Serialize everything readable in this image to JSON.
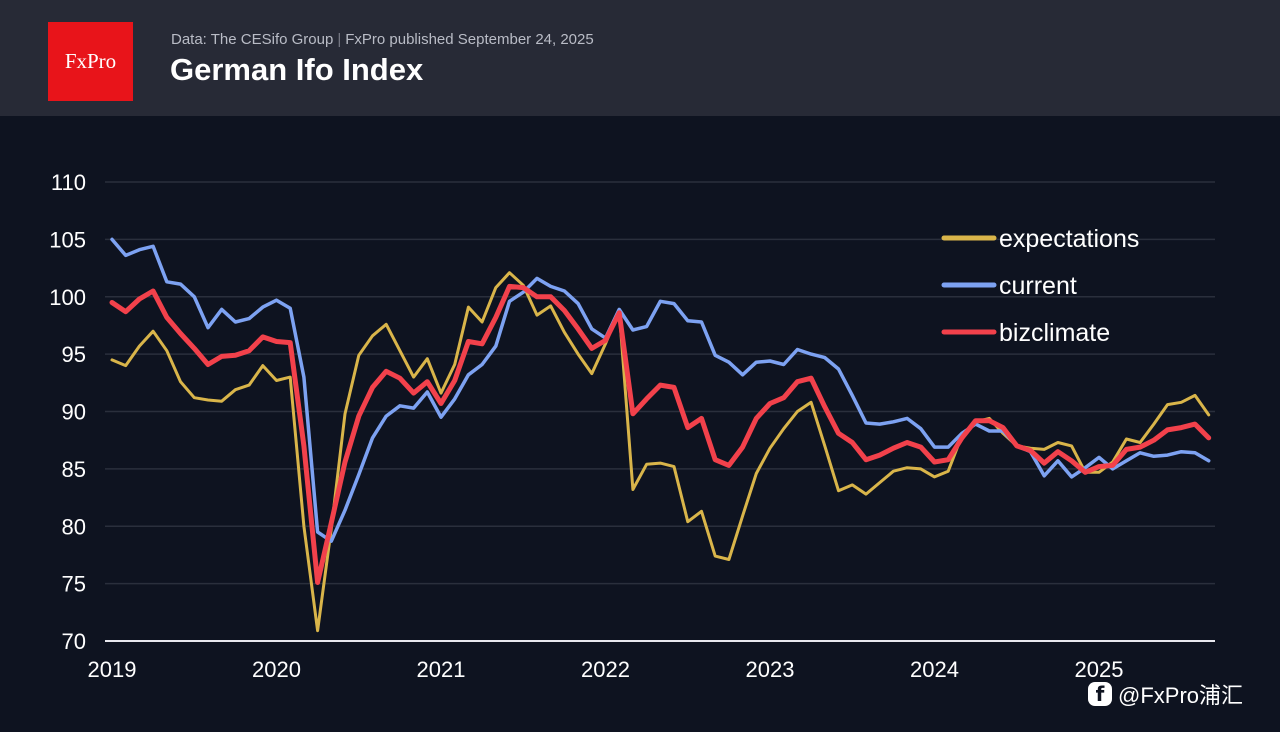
{
  "header": {
    "logo_text": "FxPro",
    "source": "Data: The CESifo Group",
    "separator": "|",
    "published": "FxPro published September 24, 2025",
    "title": "German Ifo Index"
  },
  "watermark": {
    "icon": "facebook-icon",
    "icon_glyph": "f",
    "text": "@FxPro浦汇"
  },
  "chart_data": {
    "type": "line",
    "title": "German Ifo Index",
    "xlabel": "",
    "ylabel": "",
    "ylim": [
      70,
      110
    ],
    "yticks": [
      70,
      75,
      80,
      85,
      90,
      95,
      100,
      105,
      110
    ],
    "xtick_labels": [
      "2019",
      "2020",
      "2021",
      "2022",
      "2023",
      "2024",
      "2025"
    ],
    "x_start": "2019-01",
    "x_frequency": "monthly",
    "x_end": "2025-09",
    "grid": true,
    "legend_position": "top-right",
    "series": [
      {
        "name": "expectations",
        "color": "#d9b54a",
        "values": [
          94.5,
          94.0,
          95.7,
          97.0,
          95.3,
          92.6,
          91.2,
          91.0,
          90.9,
          91.9,
          92.3,
          94.0,
          92.7,
          93.0,
          80.0,
          70.9,
          79.8,
          89.8,
          94.9,
          96.6,
          97.6,
          95.3,
          93.0,
          94.6,
          91.6,
          94.1,
          99.1,
          97.8,
          100.8,
          102.1,
          101.0,
          98.4,
          99.2,
          96.9,
          95.0,
          93.3,
          95.9,
          98.8,
          83.2,
          85.4,
          85.5,
          85.2,
          80.4,
          81.3,
          77.4,
          77.1,
          80.9,
          84.6,
          86.8,
          88.5,
          90.0,
          90.8,
          87.0,
          83.1,
          83.6,
          82.8,
          83.8,
          84.8,
          85.1,
          85.0,
          84.3,
          84.8,
          87.9,
          89.1,
          89.4,
          88.1,
          87.0,
          86.8,
          86.7,
          87.3,
          87.0,
          84.7,
          84.7,
          85.6,
          87.6,
          87.3,
          88.9,
          90.6,
          90.8,
          91.4,
          89.7
        ]
      },
      {
        "name": "current",
        "color": "#7da2f2",
        "values": [
          105.0,
          103.6,
          104.1,
          104.4,
          101.3,
          101.1,
          100.0,
          97.3,
          98.9,
          97.8,
          98.1,
          99.1,
          99.7,
          99.0,
          93.0,
          79.5,
          78.7,
          81.4,
          84.5,
          87.7,
          89.6,
          90.5,
          90.3,
          91.7,
          89.5,
          91.1,
          93.2,
          94.1,
          95.7,
          99.6,
          100.4,
          101.6,
          100.9,
          100.5,
          99.4,
          97.2,
          96.4,
          98.9,
          97.1,
          97.4,
          99.6,
          99.4,
          97.9,
          97.8,
          94.9,
          94.3,
          93.2,
          94.3,
          94.4,
          94.1,
          95.4,
          95.0,
          94.7,
          93.7,
          91.4,
          89.0,
          88.9,
          89.1,
          89.4,
          88.5,
          86.9,
          86.9,
          88.1,
          88.9,
          88.3,
          88.3,
          87.0,
          86.5,
          84.4,
          85.7,
          84.3,
          85.1,
          86.0,
          85.0,
          85.7,
          86.4,
          86.1,
          86.2,
          86.5,
          86.4,
          85.7
        ]
      },
      {
        "name": "bizclimate",
        "color": "#f2414b",
        "values": [
          99.5,
          98.7,
          99.8,
          100.5,
          98.2,
          96.8,
          95.5,
          94.1,
          94.8,
          94.9,
          95.3,
          96.5,
          96.1,
          96.0,
          87.0,
          75.1,
          80.3,
          85.6,
          89.6,
          92.1,
          93.5,
          92.9,
          91.6,
          92.6,
          90.7,
          92.7,
          96.1,
          95.9,
          98.2,
          100.9,
          100.8,
          100.0,
          100.0,
          98.8,
          97.2,
          95.5,
          96.2,
          98.6,
          89.8,
          91.1,
          92.3,
          92.1,
          88.6,
          89.4,
          85.8,
          85.3,
          86.9,
          89.4,
          90.7,
          91.2,
          92.6,
          92.9,
          90.4,
          88.1,
          87.3,
          85.8,
          86.2,
          86.8,
          87.3,
          86.9,
          85.6,
          85.8,
          87.7,
          89.2,
          89.2,
          88.6,
          87.0,
          86.6,
          85.5,
          86.5,
          85.7,
          84.7,
          85.2,
          85.3,
          86.7,
          86.9,
          87.5,
          88.4,
          88.6,
          88.9,
          87.7
        ]
      }
    ]
  }
}
